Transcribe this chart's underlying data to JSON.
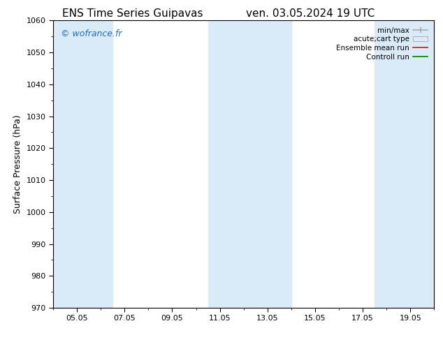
{
  "title_left": "ENS Time Series Guipavas",
  "title_right": "ven. 03.05.2024 19 UTC",
  "ylabel": "Surface Pressure (hPa)",
  "ylim": [
    970,
    1060
  ],
  "yticks": [
    970,
    980,
    990,
    1000,
    1010,
    1020,
    1030,
    1040,
    1050,
    1060
  ],
  "xtick_labels": [
    "05.05",
    "07.05",
    "09.05",
    "11.05",
    "13.05",
    "15.05",
    "17.05",
    "19.05"
  ],
  "xtick_positions": [
    2,
    4,
    6,
    8,
    10,
    12,
    14,
    16
  ],
  "xmin": 1,
  "xmax": 17,
  "watermark": "© wofrance.fr",
  "watermark_color": "#1a6ec9",
  "bg_color": "#ffffff",
  "shaded_regions": [
    {
      "xmin": 1.0,
      "xmax": 3.0,
      "color": "#daeaf7"
    },
    {
      "xmin": 3.0,
      "xmax": 3.5,
      "color": "#daeaf7"
    },
    {
      "xmin": 7.5,
      "xmax": 9.5,
      "color": "#daeaf7"
    },
    {
      "xmin": 9.5,
      "xmax": 11.0,
      "color": "#daeaf7"
    },
    {
      "xmin": 14.5,
      "xmax": 16.5,
      "color": "#daeaf7"
    },
    {
      "xmin": 16.5,
      "xmax": 17.0,
      "color": "#daeaf7"
    }
  ],
  "legend_entries": [
    {
      "label": "min/max",
      "type": "errorbar",
      "color": "#aaaaaa"
    },
    {
      "label": "acute;cart type",
      "type": "box",
      "color": "#daeaf7"
    },
    {
      "label": "Ensemble mean run",
      "type": "line",
      "color": "#ff0000"
    },
    {
      "label": "Controll run",
      "type": "line",
      "color": "#008000"
    }
  ],
  "title_fontsize": 11,
  "tick_fontsize": 8,
  "ylabel_fontsize": 9
}
